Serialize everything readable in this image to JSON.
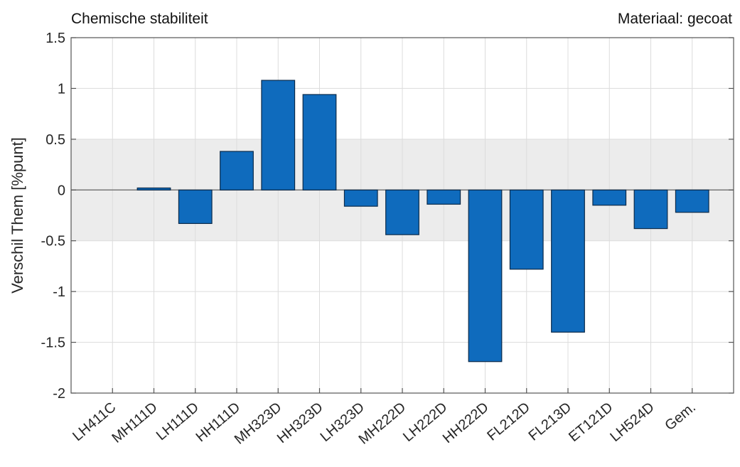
{
  "chart_data": {
    "type": "bar",
    "title": "Chemische stabiliteit",
    "subtitle": "Materiaal: gecoat",
    "ylabel": "Verschil Them [%punt]",
    "xlabel": "",
    "categories": [
      "LH411C",
      "MH111D",
      "LH111D",
      "HH111D",
      "MH323D",
      "HH323D",
      "LH323D",
      "MH222D",
      "LH222D",
      "HH222D",
      "FL212D",
      "FL213D",
      "ET121D",
      "LH524D",
      "Gem."
    ],
    "values": [
      0,
      0.02,
      -0.33,
      0.38,
      1.08,
      0.94,
      -0.16,
      -0.44,
      -0.14,
      -1.69,
      -0.78,
      -1.4,
      -0.15,
      -0.38,
      -0.22
    ],
    "ylim": [
      -2,
      1.5
    ],
    "yticks": [
      -2,
      -1.5,
      -1,
      -0.5,
      0,
      0.5,
      1,
      1.5
    ],
    "ytick_labels": [
      "-2",
      "-1.5",
      "-1",
      "-0.5",
      "0",
      "0.5",
      "1",
      "1.5"
    ],
    "tolerance_band": [
      -0.5,
      0.5
    ],
    "grid": true,
    "colors": {
      "bar": "#0f6bbd",
      "bar_edge": "#0b2a4a",
      "band": "#ececec",
      "grid": "#dcdcdc",
      "axis": "#555555"
    }
  }
}
